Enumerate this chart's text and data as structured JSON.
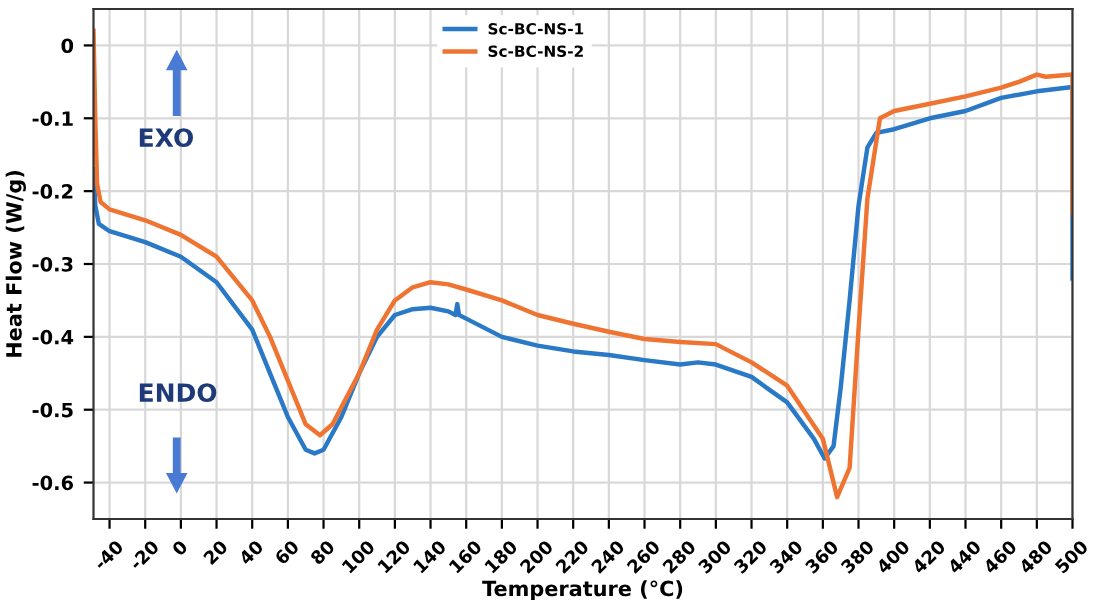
{
  "chart_data": {
    "type": "line",
    "xlabel": "Temperature (°C)",
    "ylabel": "Heat Flow (W/g)",
    "xlim": [
      -49,
      500
    ],
    "ylim": [
      -0.65,
      0.05
    ],
    "xticks": [
      -40,
      -20,
      0,
      20,
      40,
      60,
      80,
      100,
      120,
      140,
      160,
      180,
      200,
      220,
      240,
      260,
      280,
      300,
      320,
      340,
      360,
      380,
      400,
      420,
      440,
      460,
      480,
      500
    ],
    "yticks": [
      0,
      -0.1,
      -0.2,
      -0.3,
      -0.4,
      -0.5,
      -0.6
    ],
    "grid": true,
    "legend": "top",
    "line_style": "solid",
    "marker": "none",
    "annotations": [
      "EXO",
      "ENDO"
    ],
    "series": [
      {
        "name": "Sc-BC-NS-1",
        "color": "#2a79c6",
        "x": [
          -49,
          -48,
          -46,
          -40,
          -20,
          0,
          20,
          40,
          50,
          60,
          70,
          75,
          80,
          90,
          100,
          110,
          120,
          130,
          140,
          150,
          154,
          155,
          156,
          160,
          180,
          200,
          220,
          240,
          260,
          280,
          290,
          300,
          320,
          340,
          355,
          361,
          366,
          370,
          375,
          380,
          385,
          390,
          400,
          420,
          440,
          460,
          480,
          500,
          500
        ],
        "values": [
          -0.17,
          -0.22,
          -0.245,
          -0.255,
          -0.27,
          -0.29,
          -0.325,
          -0.39,
          -0.45,
          -0.51,
          -0.555,
          -0.56,
          -0.555,
          -0.51,
          -0.45,
          -0.4,
          -0.37,
          -0.362,
          -0.36,
          -0.365,
          -0.37,
          -0.355,
          -0.37,
          -0.375,
          -0.4,
          -0.412,
          -0.42,
          -0.425,
          -0.432,
          -0.438,
          -0.435,
          -0.438,
          -0.455,
          -0.49,
          -0.54,
          -0.567,
          -0.55,
          -0.47,
          -0.35,
          -0.22,
          -0.14,
          -0.12,
          -0.115,
          -0.1,
          -0.09,
          -0.072,
          -0.063,
          -0.057,
          -0.32
        ]
      },
      {
        "name": "Sc-BC-NS-2",
        "color": "#ef7431",
        "x": [
          -49,
          -48,
          -47,
          -45,
          -40,
          -20,
          0,
          20,
          40,
          50,
          60,
          70,
          78,
          85,
          100,
          110,
          120,
          130,
          140,
          150,
          160,
          180,
          200,
          220,
          240,
          260,
          280,
          300,
          320,
          340,
          360,
          368,
          375,
          380,
          385,
          392,
          400,
          420,
          440,
          460,
          470,
          480,
          485,
          500,
          500
        ],
        "values": [
          0.02,
          -0.1,
          -0.19,
          -0.215,
          -0.225,
          -0.24,
          -0.26,
          -0.29,
          -0.35,
          -0.4,
          -0.46,
          -0.52,
          -0.535,
          -0.52,
          -0.45,
          -0.39,
          -0.35,
          -0.332,
          -0.325,
          -0.328,
          -0.335,
          -0.35,
          -0.37,
          -0.382,
          -0.393,
          -0.403,
          -0.407,
          -0.41,
          -0.435,
          -0.467,
          -0.54,
          -0.62,
          -0.58,
          -0.39,
          -0.21,
          -0.1,
          -0.09,
          -0.08,
          -0.07,
          -0.058,
          -0.05,
          -0.04,
          -0.043,
          -0.04,
          -0.23
        ]
      }
    ]
  }
}
